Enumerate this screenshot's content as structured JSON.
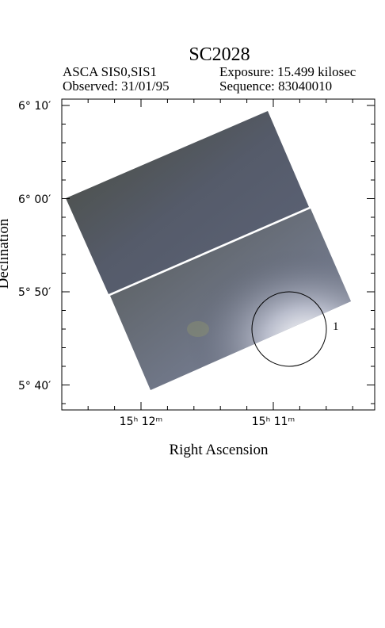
{
  "header": {
    "title": "SC2028",
    "instrument": "ASCA SIS0,SIS1",
    "exposure": "Exposure: 15.499 kilosec",
    "observed": "Observed: 31/01/95",
    "sequence": "Sequence: 83040010"
  },
  "axes": {
    "x_label": "Right Ascension",
    "y_label": "Declination",
    "x_ticks": [
      "15ʰ 12ᵐ",
      "15ʰ 11ᵐ"
    ],
    "y_ticks": [
      "6° 10′",
      "6° 00′",
      "5° 50′",
      "5° 40′"
    ]
  },
  "source_label": "1"
}
